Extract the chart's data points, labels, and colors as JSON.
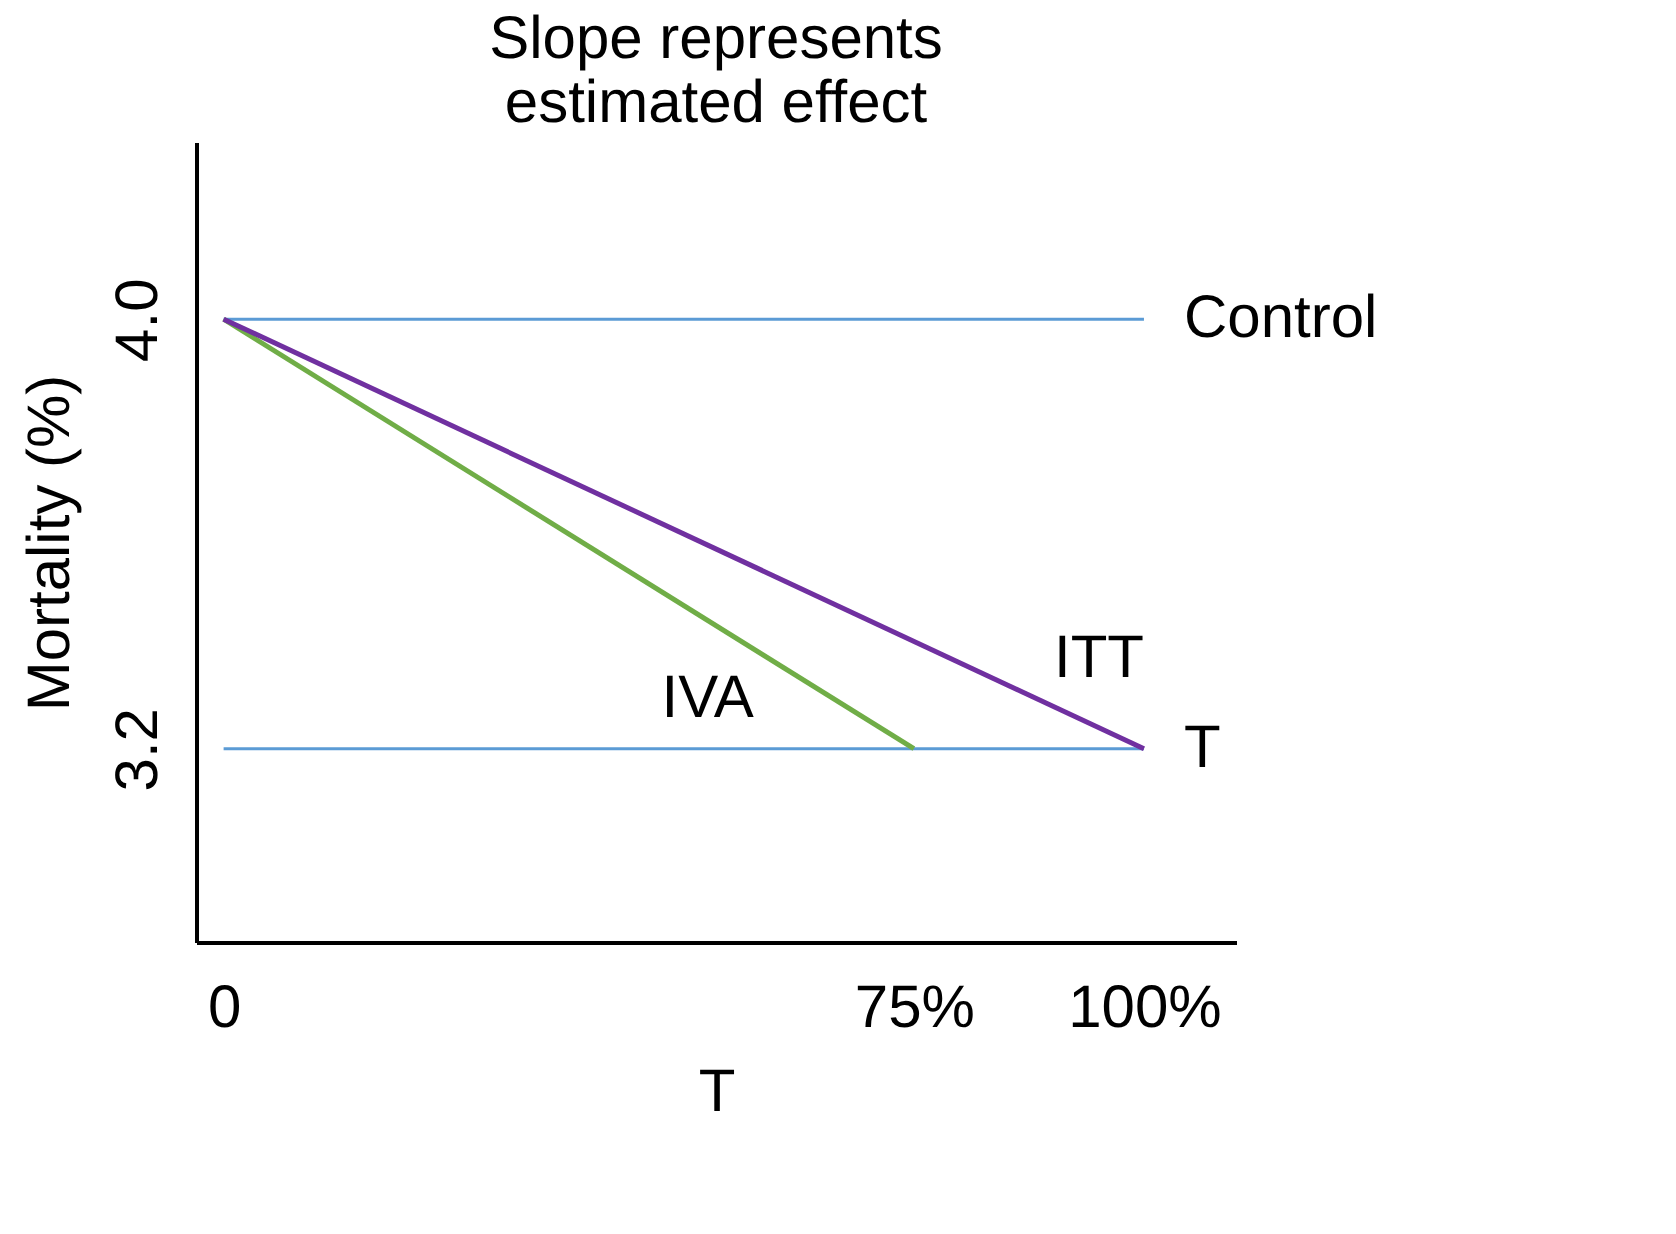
{
  "chart_data": {
    "type": "line",
    "title": [
      "Slope represents",
      "estimated effect"
    ],
    "xlabel": "T",
    "ylabel": "Mortality (%)",
    "xlim": [
      -3,
      110
    ],
    "ylim": [
      2.84,
      4.33
    ],
    "xticks": [
      {
        "value": 0,
        "label": "0"
      },
      {
        "value": 75,
        "label": "75%"
      },
      {
        "value": 100,
        "label": "100%"
      }
    ],
    "yticks": [
      {
        "value": 3.2,
        "label": "3.2"
      },
      {
        "value": 4.0,
        "label": "4.0"
      }
    ],
    "line_style": "solid",
    "series": [
      {
        "name": "Control",
        "color": "#5b9bd5",
        "x": [
          0,
          100
        ],
        "values": [
          4.0,
          4.0
        ]
      },
      {
        "name": "T",
        "color": "#5b9bd5",
        "x": [
          0,
          100
        ],
        "values": [
          3.2,
          3.2
        ]
      },
      {
        "name": "IVA",
        "color": "#70ad47",
        "x": [
          0,
          75
        ],
        "values": [
          4.0,
          3.2
        ]
      },
      {
        "name": "ITT",
        "color": "#7030a0",
        "x": [
          0,
          100
        ],
        "values": [
          4.0,
          3.2
        ]
      }
    ]
  }
}
